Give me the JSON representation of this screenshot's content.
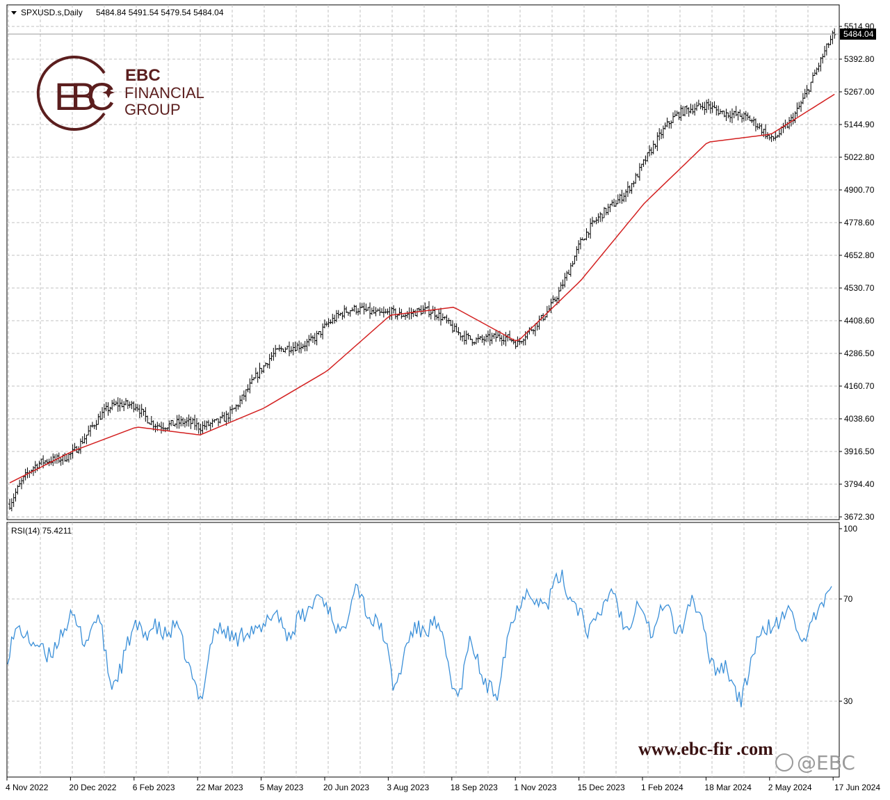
{
  "header": {
    "symbol_label": "SPXUSD.s,Daily",
    "ohlc_values": "5484.84 5491.54 5479.54 5484.04",
    "price_tag": "5484.04",
    "top_tick": "5514.90"
  },
  "rsi_header": {
    "label": "RSI(14) 75.4211"
  },
  "logo": {
    "mark": "EBC",
    "line1": "EBC",
    "line2": "FINANCIAL",
    "line3": "GROUP"
  },
  "watermark": {
    "url": "www.ebc-fir .com",
    "handle": "@EBC"
  },
  "colors": {
    "bars": "#000000",
    "moving_average": "#d32020",
    "rsi_line": "#3a8fd8",
    "grid": "#c0c0c0",
    "brand": "#5b1e1e"
  },
  "chart_data": [
    {
      "type": "bar",
      "title": "SPXUSD.s,Daily",
      "series": [
        {
          "name": "",
          "kind": "ohlc_close_approx",
          "x": [
            "4 Nov 2022",
            "20 Dec 2022",
            "6 Feb 2023",
            "22 Mar 2023",
            "5 May 2023",
            "20 Jun 2023",
            "3 Aug 2023",
            "18 Sep 2023",
            "1 Nov 2023",
            "15 Dec 2023",
            "1 Feb 2024",
            "18 Mar 2024",
            "2 May 2024",
            "17 Jun 2024"
          ],
          "values": [
            3720,
            3900,
            4140,
            4010,
            4160,
            4410,
            4520,
            4350,
            4270,
            4730,
            5020,
            5210,
            5110,
            5484.04
          ]
        },
        {
          "name": "",
          "kind": "moving_average",
          "values": [
            3800,
            3920,
            4010,
            3980,
            4080,
            4220,
            4430,
            4460,
            4330,
            4560,
            4850,
            5080,
            5110,
            5260
          ]
        }
      ],
      "x_tick_labels": [
        "4 Nov 2022",
        "20 Dec 2022",
        "6 Feb 2023",
        "22 Mar 2023",
        "5 May 2023",
        "20 Jun 2023",
        "3 Aug 2023",
        "18 Sep 2023",
        "1 Nov 2023",
        "15 Dec 2023",
        "1 Feb 2024",
        "18 Mar 2024",
        "2 May 2024",
        "17 Jun 2024"
      ],
      "y_tick_labels": [
        "5514.90",
        "5392.80",
        "5267.00",
        "5144.90",
        "5022.80",
        "4900.70",
        "4778.60",
        "4652.80",
        "4530.70",
        "4408.60",
        "4286.50",
        "4160.70",
        "4038.60",
        "3916.50",
        "3794.40",
        "3672.30"
      ],
      "ylim": [
        3672.3,
        5514.9
      ],
      "last_price": 5484.04,
      "grid": true
    },
    {
      "type": "line",
      "title": "RSI(14) 75.4211",
      "series": [
        {
          "name": "",
          "values": [
            48,
            58,
            55,
            44,
            58,
            60,
            56,
            62,
            38,
            45,
            60,
            58,
            55,
            62,
            42,
            33,
            55,
            60,
            52,
            60,
            58,
            65,
            56,
            62,
            74,
            63,
            58,
            75,
            66,
            58,
            36,
            52,
            58,
            62,
            48,
            32,
            52,
            40,
            30,
            62,
            70,
            72,
            68,
            80,
            70,
            56,
            66,
            72,
            60,
            68,
            58,
            68,
            56,
            70,
            58,
            44,
            40,
            32,
            48,
            62,
            58,
            68,
            50,
            66,
            75.4
          ]
        }
      ],
      "y_tick_labels": [
        "100",
        "70",
        "30"
      ],
      "levels": [
        30,
        70
      ],
      "ylim": [
        0,
        100
      ],
      "grid": true
    }
  ]
}
